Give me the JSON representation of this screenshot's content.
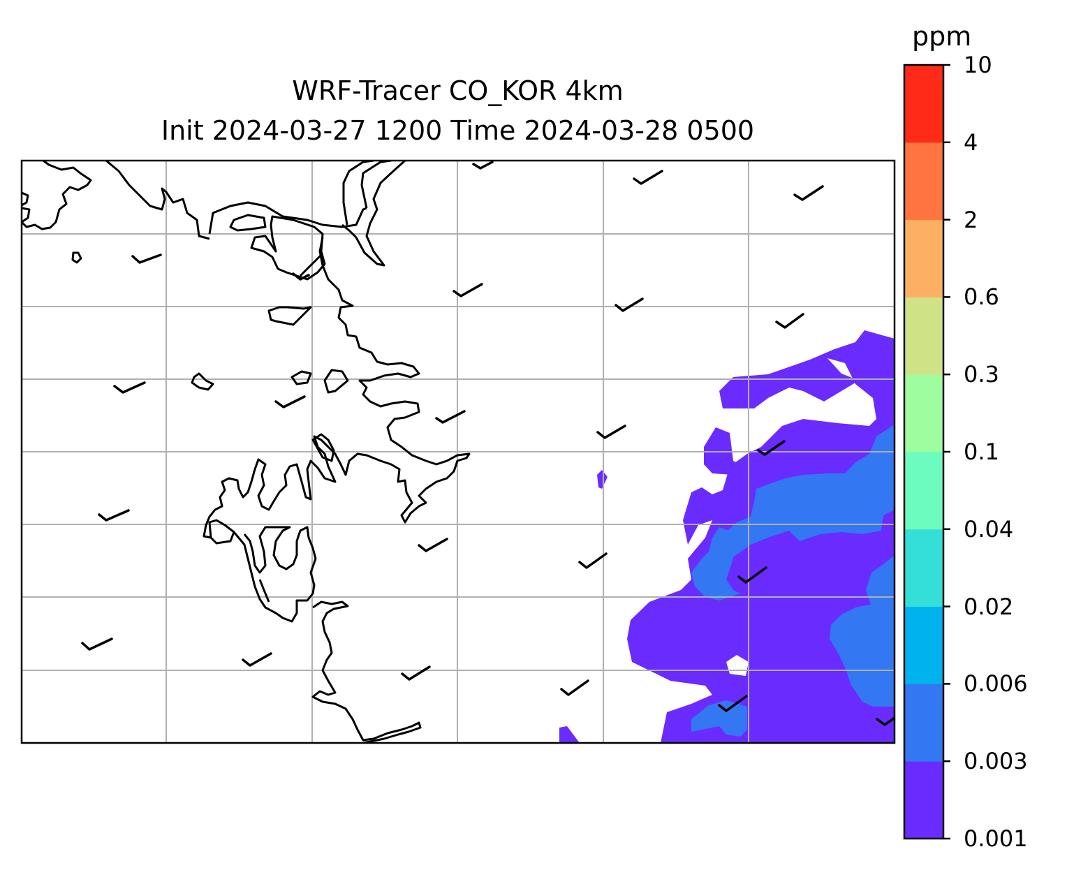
{
  "title": {
    "line1": "WRF-Tracer CO_KOR 4km",
    "line2": "Init 2024-03-27 1200 Time 2024-03-28 0500"
  },
  "colorbar": {
    "unit": "ppm",
    "levels": [
      "0.001",
      "0.003",
      "0.006",
      "0.02",
      "0.04",
      "0.1",
      "0.3",
      "0.6",
      "2",
      "4",
      "10"
    ],
    "colors": [
      "#6a2bff",
      "#3377f2",
      "#00b3ee",
      "#33dfd6",
      "#6dfcbf",
      "#9dfd9f",
      "#d0e286",
      "#fdb063",
      "#ff7440",
      "#ff2b18"
    ]
  },
  "map": {
    "gridlines": true,
    "gridline_color": "#b0b0b0",
    "coastline_color": "#000000",
    "wind_barbs": "calm-to-light northeasterly",
    "shaded_levels": [
      "0.001-0.003",
      "0.003-0.006"
    ]
  }
}
